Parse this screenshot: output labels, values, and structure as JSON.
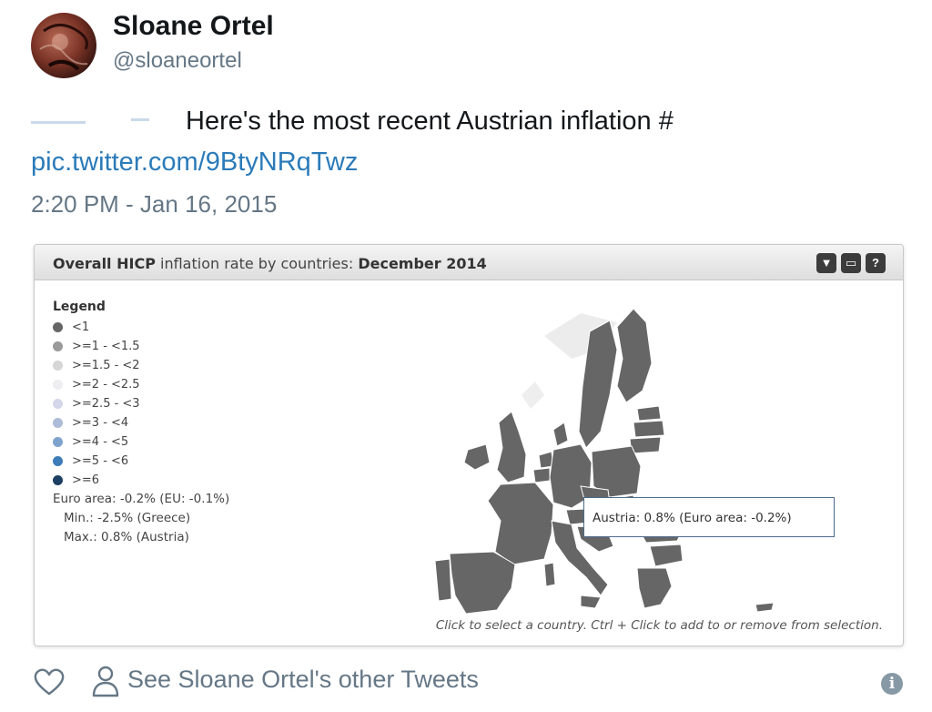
{
  "tweet": {
    "author_name": "Sloane Ortel",
    "author_handle": "@sloaneortel",
    "text": "Here's the most recent Austrian inflation #",
    "link": "pic.twitter.com/9BtyNRqTwz",
    "timestamp": "2:20 PM - Jan 16, 2015"
  },
  "card": {
    "title_bold_1": "Overall HICP",
    "title_middle": " inflation rate by countries: ",
    "title_bold_2": "December 2014",
    "controls": [
      "▼",
      "▭",
      "?"
    ],
    "legend_title": "Legend",
    "legend": [
      {
        "label": "<1",
        "color": "#666666"
      },
      {
        "label": ">=1 - <1.5",
        "color": "#9a9a9a"
      },
      {
        "label": ">=1.5 - <2",
        "color": "#d6d6d6"
      },
      {
        "label": ">=2 - <2.5",
        "color": "#ededf2"
      },
      {
        "label": ">=2.5 - <3",
        "color": "#d4d6ea"
      },
      {
        "label": ">=3 - <4",
        "color": "#aebcd8"
      },
      {
        "label": ">=4 - <5",
        "color": "#7ea4cd"
      },
      {
        "label": ">=5 - <6",
        "color": "#3d7cb8"
      },
      {
        "label": ">=6",
        "color": "#1c3f62"
      }
    ],
    "euro_area": "Euro area: -0.2% (EU: -0.1%)",
    "min": "Min.: -2.5% (Greece)",
    "max": "Max.: 0.8% (Austria)",
    "tooltip": "Austria: 0.8% (Euro area: -0.2%)",
    "hint": "Click to select a country. Ctrl + Click to add to or remove from selection.",
    "map_color": "#666666"
  },
  "footer": {
    "see_other": "See Sloane Ortel's other Tweets",
    "info_icon": "i"
  }
}
